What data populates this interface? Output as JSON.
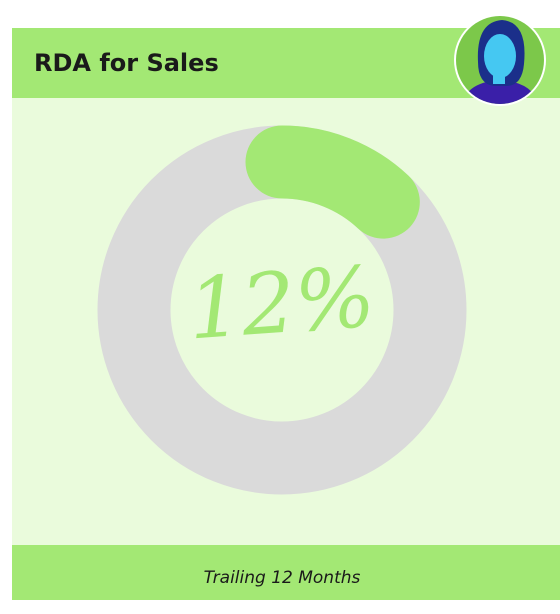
{
  "chart_data": {
    "type": "gauge",
    "title": "RDA for Sales",
    "value": 12,
    "value_label": "12%",
    "ylim": [
      0,
      100
    ],
    "footer": "Trailing 12 Months",
    "color": "#a3e874",
    "track_color": "#dadada"
  }
}
